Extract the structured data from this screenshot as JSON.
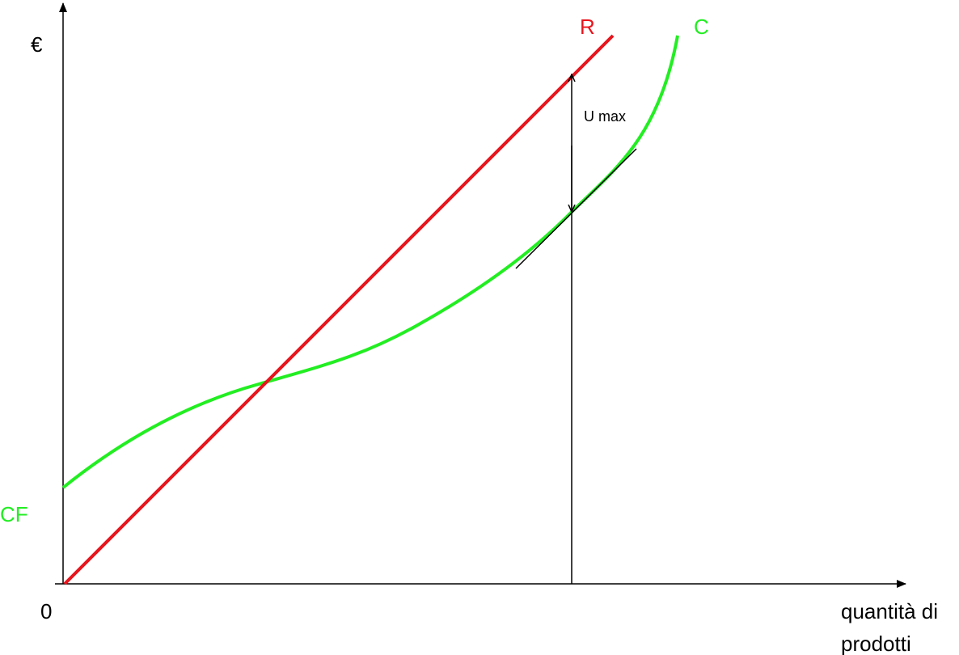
{
  "axes": {
    "y_label": "€",
    "origin": "0",
    "x_label": [
      "quantità di",
      "prodotti"
    ]
  },
  "curves": {
    "revenue": "R",
    "cost": "C",
    "fixed_cost": "CF"
  },
  "annotation": "U max"
}
